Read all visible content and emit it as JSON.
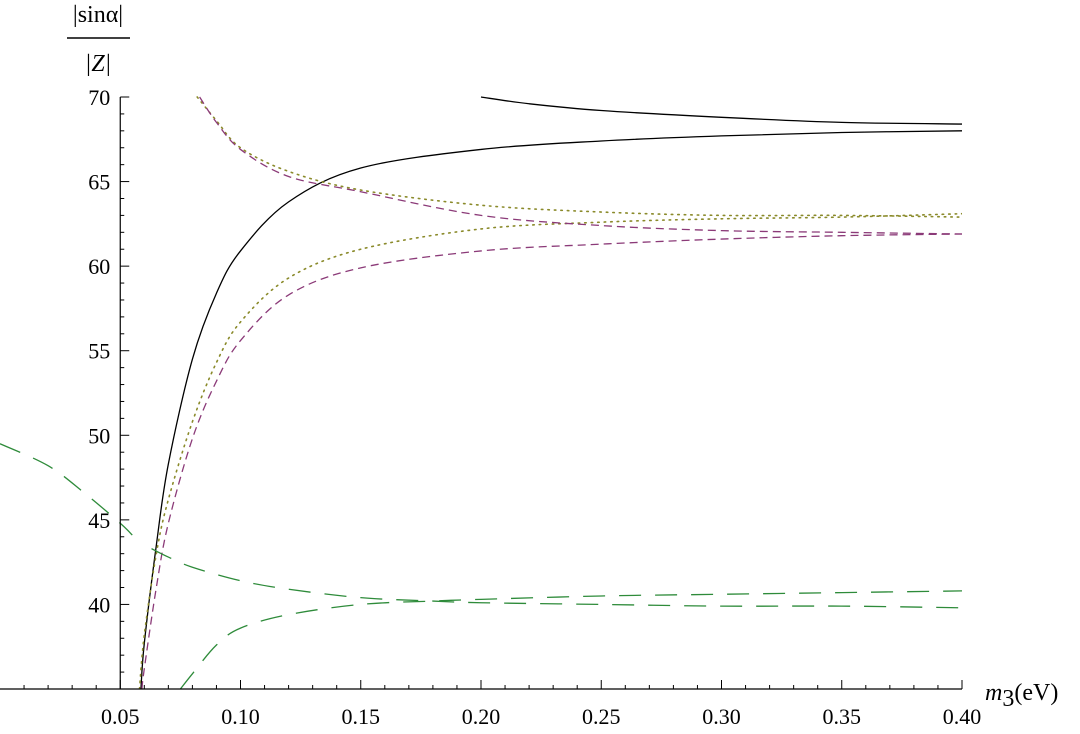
{
  "chart_data": {
    "type": "line",
    "ylabel_numerator": "|sinα|",
    "ylabel_denominator": "|Z|",
    "xlabel_var": "m",
    "xlabel_sub": "3",
    "xlabel_unit": "(eV)",
    "xlim": [
      0.0,
      0.4
    ],
    "ylim": [
      35,
      70
    ],
    "x_axis_crossing_y": 35,
    "y_axis_crossing_x": 0.05,
    "xticks": [
      0.05,
      0.1,
      0.15,
      0.2,
      0.25,
      0.3,
      0.35,
      0.4
    ],
    "xtick_labels": [
      "0.05",
      "0.10",
      "0.15",
      "0.20",
      "0.25",
      "0.30",
      "0.35",
      "0.40"
    ],
    "yticks": [
      40,
      45,
      50,
      55,
      60,
      65,
      70
    ],
    "ytick_labels": [
      "40",
      "45",
      "50",
      "55",
      "60",
      "65",
      "70"
    ],
    "grid": false,
    "series": [
      {
        "style": "solid",
        "color": "#000000",
        "x": [
          0.0586,
          0.06,
          0.065,
          0.07,
          0.08,
          0.09,
          0.1,
          0.12,
          0.15,
          0.2,
          0.25,
          0.3,
          0.35,
          0.4
        ],
        "y": [
          35.0,
          37.7,
          43.5,
          48.3,
          54.5,
          58.4,
          60.9,
          63.8,
          65.8,
          66.9,
          67.4,
          67.7,
          67.9,
          68.0
        ]
      },
      {
        "style": "solid",
        "color": "#000000",
        "x": [
          0.2,
          0.22,
          0.25,
          0.3,
          0.35,
          0.4
        ],
        "y": [
          70.0,
          69.6,
          69.2,
          68.8,
          68.5,
          68.4
        ]
      },
      {
        "style": "dotted",
        "color": "#8a8a2a",
        "x": [
          0.058,
          0.06,
          0.065,
          0.07,
          0.08,
          0.09,
          0.1,
          0.12,
          0.15,
          0.2,
          0.25,
          0.3,
          0.35,
          0.4
        ],
        "y": [
          35.0,
          38.2,
          43.0,
          46.2,
          50.8,
          54.3,
          56.7,
          59.3,
          61.0,
          62.2,
          62.6,
          62.8,
          62.9,
          63.1
        ]
      },
      {
        "style": "dotted",
        "color": "#8a8a2a",
        "x": [
          0.082,
          0.09,
          0.1,
          0.12,
          0.15,
          0.2,
          0.25,
          0.3,
          0.35,
          0.4
        ],
        "y": [
          70.0,
          68.6,
          67.0,
          65.6,
          64.5,
          63.6,
          63.2,
          63.0,
          63.0,
          62.9
        ]
      },
      {
        "style": "dashed",
        "color": "#8b3a78",
        "x": [
          0.059,
          0.06,
          0.065,
          0.07,
          0.08,
          0.09,
          0.1,
          0.12,
          0.15,
          0.2,
          0.25,
          0.3,
          0.35,
          0.4
        ],
        "y": [
          35.0,
          36.2,
          41.0,
          44.8,
          49.8,
          53.2,
          55.6,
          58.3,
          59.9,
          60.9,
          61.3,
          61.6,
          61.8,
          61.9
        ]
      },
      {
        "style": "dashed",
        "color": "#8b3a78",
        "x": [
          0.083,
          0.09,
          0.1,
          0.12,
          0.15,
          0.2,
          0.25,
          0.3,
          0.35,
          0.4
        ],
        "y": [
          70.0,
          68.5,
          66.9,
          65.3,
          64.4,
          63.0,
          62.4,
          62.1,
          62.0,
          61.9
        ]
      },
      {
        "style": "long-dashed",
        "color": "#2e8b3a",
        "x": [
          0.0,
          0.02,
          0.035,
          0.05,
          0.055
        ],
        "y": [
          49.5,
          48.2,
          46.6,
          44.8,
          44.1
        ]
      },
      {
        "style": "long-dashed",
        "color": "#2e8b3a",
        "x": [
          0.063,
          0.07,
          0.08,
          0.1,
          0.12,
          0.15,
          0.18,
          0.2,
          0.25,
          0.3,
          0.35,
          0.4
        ],
        "y": [
          43.3,
          42.8,
          42.2,
          41.4,
          40.9,
          40.4,
          40.2,
          40.1,
          40.0,
          39.9,
          39.9,
          39.8
        ]
      },
      {
        "style": "long-dashed",
        "color": "#2e8b3a",
        "x": [
          0.075,
          0.08,
          0.09,
          0.1,
          0.12,
          0.15,
          0.18,
          0.2,
          0.25,
          0.3,
          0.35,
          0.4
        ],
        "y": [
          35.0,
          35.9,
          37.6,
          38.6,
          39.4,
          40.0,
          40.2,
          40.3,
          40.5,
          40.6,
          40.7,
          40.8
        ]
      }
    ]
  }
}
